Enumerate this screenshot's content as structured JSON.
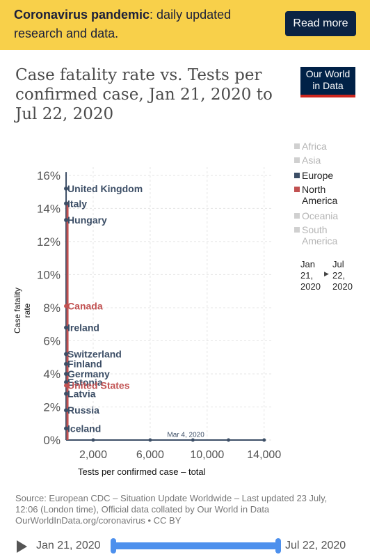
{
  "banner": {
    "bold": "Coronavirus pandemic",
    "text": ": daily updated research and data.",
    "button": "Read more"
  },
  "title": "Case fatality rate vs. Tests per confirmed case, Jan 21, 2020 to Jul 22, 2020",
  "logo": {
    "line1": "Our World",
    "line2": "in Data"
  },
  "legend": [
    {
      "label_lines": [
        "Africa"
      ],
      "color": "#d0d0d0",
      "faded": true
    },
    {
      "label_lines": [
        "Asia"
      ],
      "color": "#d0d0d0",
      "faded": true
    },
    {
      "label_lines": [
        "Europe"
      ],
      "color": "#3c4e66",
      "faded": false
    },
    {
      "label_lines": [
        "North",
        "America"
      ],
      "color": "#c15151",
      "faded": false
    },
    {
      "label_lines": [
        "Oceania"
      ],
      "color": "#d0d0d0",
      "faded": true
    },
    {
      "label_lines": [
        "South",
        "America"
      ],
      "color": "#d0d0d0",
      "faded": true
    }
  ],
  "timeline_legend": {
    "start_lines": [
      "Jan",
      "21,",
      "2020"
    ],
    "end_lines": [
      "Jul",
      "22,",
      "2020"
    ],
    "arrow": "▶"
  },
  "timeline": {
    "start": "Jan 21, 2020",
    "end": "Jul 22, 2020"
  },
  "source": "Source: European CDC – Situation Update Worldwide – Last updated 23 July, 12:06 (London time), Official data collated by Our World in Data OurWorldInData.org/coronavirus • CC BY",
  "chart_data": {
    "type": "scatter",
    "title": "Case fatality rate vs. Tests per confirmed case, Jan 21, 2020 to Jul 22, 2020",
    "xlabel": "Tests per confirmed case – total",
    "ylabel": "Case fatality rate",
    "xlim": [
      0,
      14500
    ],
    "ylim": [
      0,
      16.5
    ],
    "x_ticks": [
      2000,
      6000,
      10000,
      14000
    ],
    "x_tick_labels": [
      "2,000",
      "6,000",
      "10,000",
      "14,000"
    ],
    "y_ticks": [
      0,
      2,
      4,
      6,
      8,
      10,
      12,
      14,
      16
    ],
    "y_tick_labels": [
      "0%",
      "2%",
      "4%",
      "6%",
      "8%",
      "10%",
      "12%",
      "14%",
      "16%"
    ],
    "colors": {
      "Europe": "#3c4e66",
      "North America": "#c15151"
    },
    "series": [
      {
        "name": "United Kingdom",
        "region": "Europe",
        "x": 100,
        "y": 15.2
      },
      {
        "name": "Italy",
        "region": "Europe",
        "x": 100,
        "y": 14.3
      },
      {
        "name": "Hungary",
        "region": "Europe",
        "x": 100,
        "y": 13.3
      },
      {
        "name": "Canada",
        "region": "North America",
        "x": 100,
        "y": 8.1
      },
      {
        "name": "Ireland",
        "region": "Europe",
        "x": 100,
        "y": 6.8
      },
      {
        "name": "Switzerland",
        "region": "Europe",
        "x": 100,
        "y": 5.2
      },
      {
        "name": "Finland",
        "region": "Europe",
        "x": 100,
        "y": 4.6
      },
      {
        "name": "Germany",
        "region": "Europe",
        "x": 100,
        "y": 4.0
      },
      {
        "name": "Estonia",
        "region": "Europe",
        "x": 100,
        "y": 3.5
      },
      {
        "name": "United States",
        "region": "North America",
        "x": 100,
        "y": 3.3
      },
      {
        "name": "Latvia",
        "region": "Europe",
        "x": 100,
        "y": 2.8
      },
      {
        "name": "Russia",
        "region": "Europe",
        "x": 100,
        "y": 1.8
      },
      {
        "name": "Iceland",
        "region": "Europe",
        "x": 100,
        "y": 0.7
      }
    ],
    "trail": {
      "x": [
        100,
        2000,
        6000,
        9000,
        11500,
        14000
      ],
      "y": [
        0,
        0,
        0,
        0,
        0,
        0
      ]
    },
    "annotation": {
      "text": "Mar 4, 2020",
      "x": 8500,
      "y": 0.1
    }
  }
}
